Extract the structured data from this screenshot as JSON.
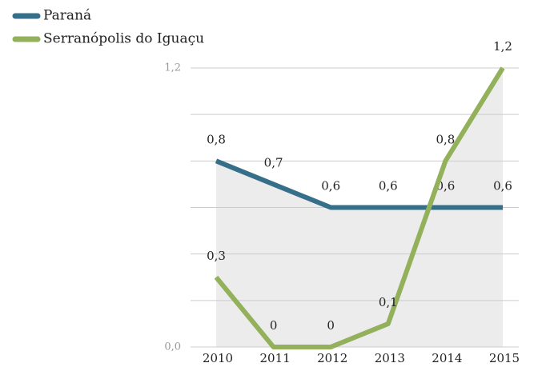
{
  "chart_data": {
    "type": "line",
    "categories": [
      "2010",
      "2011",
      "2012",
      "2013",
      "2014",
      "2015"
    ],
    "series": [
      {
        "name": "Paraná",
        "color": "#356f89",
        "values": [
          0.8,
          0.7,
          0.6,
          0.6,
          0.6,
          0.6
        ],
        "value_labels": [
          "0,8",
          "0,7",
          "0,6",
          "0,6",
          "0,6",
          "0,6"
        ]
      },
      {
        "name": "Serranópolis do Iguaçu",
        "color": "#93b05a",
        "values": [
          0.3,
          0,
          0,
          0.1,
          0.8,
          1.2
        ],
        "value_labels": [
          "0,3",
          "0",
          "0",
          "0,1",
          "0,8",
          "1,2"
        ]
      }
    ],
    "ylim": [
      0,
      1.2
    ],
    "yticks": [
      {
        "value": 0,
        "label": "0,0"
      },
      {
        "value": 1.2,
        "label": "1,2"
      }
    ],
    "minor_yticks": [
      0.2,
      0.4,
      0.6,
      0.8,
      1.0
    ],
    "grid": true,
    "legend": "top-left",
    "area_fill": "#ececec"
  }
}
